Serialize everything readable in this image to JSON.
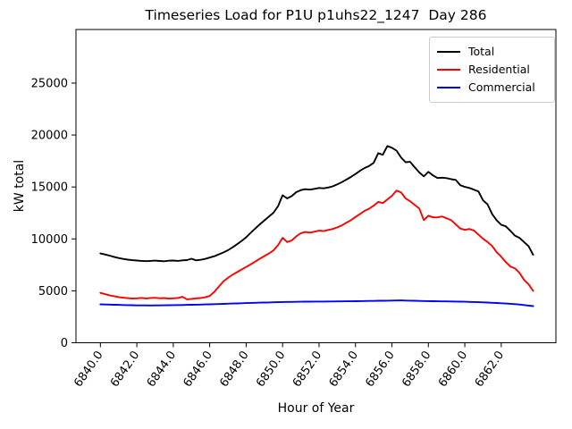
{
  "figure": {
    "title": "Timeseries Load for P1U p1uhs22_1247  Day 286",
    "xlabel": "Hour of Year",
    "ylabel": "kW total"
  },
  "chart_data": {
    "type": "line",
    "title": "Timeseries Load for P1U p1uhs22_1247  Day 286",
    "xlabel": "Hour of Year",
    "ylabel": "kW total",
    "grid": false,
    "legend_position": "upper right",
    "xlim": [
      6838.66,
      6865.0
    ],
    "ylim": [
      0,
      30160
    ],
    "xticks": [
      6840,
      6842,
      6844,
      6846,
      6848,
      6850,
      6852,
      6854,
      6856,
      6858,
      6860,
      6862
    ],
    "xtick_labels": [
      "6840.0",
      "6842.0",
      "6844.0",
      "6846.0",
      "6848.0",
      "6850.0",
      "6852.0",
      "6854.0",
      "6856.0",
      "6858.0",
      "6860.0",
      "6862.0"
    ],
    "yticks": [
      0,
      5000,
      10000,
      15000,
      20000,
      25000
    ],
    "ytick_labels": [
      "0",
      "5000",
      "10000",
      "15000",
      "20000",
      "25000"
    ],
    "x": [
      6840.0,
      6840.25,
      6840.5,
      6840.75,
      6841.0,
      6841.25,
      6841.5,
      6841.75,
      6842.0,
      6842.25,
      6842.5,
      6842.75,
      6843.0,
      6843.25,
      6843.5,
      6843.75,
      6844.0,
      6844.25,
      6844.5,
      6844.75,
      6845.0,
      6845.25,
      6845.5,
      6845.75,
      6846.0,
      6846.25,
      6846.5,
      6846.75,
      6847.0,
      6847.25,
      6847.5,
      6847.75,
      6848.0,
      6848.25,
      6848.5,
      6848.75,
      6849.0,
      6849.25,
      6849.5,
      6849.75,
      6850.0,
      6850.25,
      6850.5,
      6850.75,
      6851.0,
      6851.25,
      6851.5,
      6851.75,
      6852.0,
      6852.25,
      6852.5,
      6852.75,
      6853.0,
      6853.25,
      6853.5,
      6853.75,
      6854.0,
      6854.25,
      6854.5,
      6854.75,
      6855.0,
      6855.25,
      6855.5,
      6855.75,
      6856.0,
      6856.25,
      6856.5,
      6856.75,
      6857.0,
      6857.25,
      6857.5,
      6857.75,
      6858.0,
      6858.25,
      6858.5,
      6858.75,
      6859.0,
      6859.25,
      6859.5,
      6859.75,
      6860.0,
      6860.25,
      6860.5,
      6860.75,
      6861.0,
      6861.25,
      6861.5,
      6861.75,
      6862.0,
      6862.25,
      6862.5,
      6862.75,
      6863.0,
      6863.25,
      6863.5,
      6863.75
    ],
    "series": [
      {
        "name": "Total",
        "color": "#000000",
        "values": [
          8600,
          8500,
          8390,
          8270,
          8160,
          8070,
          8000,
          7950,
          7915,
          7880,
          7855,
          7880,
          7905,
          7870,
          7850,
          7895,
          7920,
          7885,
          7935,
          7960,
          8090,
          7930,
          7985,
          8070,
          8200,
          8330,
          8510,
          8690,
          8910,
          9180,
          9480,
          9800,
          10150,
          10580,
          11000,
          11400,
          11780,
          12150,
          12520,
          13150,
          14200,
          13900,
          14120,
          14500,
          14700,
          14780,
          14740,
          14820,
          14900,
          14870,
          14950,
          15060,
          15250,
          15460,
          15700,
          15960,
          16250,
          16560,
          16820,
          17020,
          17320,
          18250,
          18100,
          18940,
          18780,
          18500,
          17850,
          17380,
          17420,
          16900,
          16400,
          16020,
          16450,
          16120,
          15860,
          15890,
          15850,
          15750,
          15680,
          15170,
          15010,
          14900,
          14740,
          14560,
          13710,
          13330,
          12400,
          11800,
          11360,
          11210,
          10780,
          10320,
          10100,
          9700,
          9300,
          8480
        ]
      },
      {
        "name": "Residential",
        "color": "#ff0000",
        "values": [
          4800,
          4680,
          4570,
          4480,
          4400,
          4340,
          4290,
          4255,
          4280,
          4320,
          4270,
          4310,
          4330,
          4285,
          4305,
          4255,
          4280,
          4310,
          4420,
          4180,
          4225,
          4280,
          4305,
          4380,
          4500,
          4900,
          5400,
          5900,
          6250,
          6550,
          6800,
          7050,
          7300,
          7550,
          7810,
          8100,
          8350,
          8600,
          8900,
          9400,
          10100,
          9700,
          9850,
          10250,
          10550,
          10660,
          10600,
          10700,
          10800,
          10750,
          10860,
          10950,
          11110,
          11300,
          11560,
          11800,
          12110,
          12400,
          12700,
          12910,
          13200,
          13560,
          13450,
          13800,
          14150,
          14650,
          14480,
          13900,
          13620,
          13270,
          12930,
          11810,
          12240,
          12070,
          12070,
          12160,
          11980,
          11800,
          11400,
          11000,
          10870,
          10950,
          10800,
          10400,
          10010,
          9700,
          9320,
          8720,
          8290,
          7770,
          7340,
          7170,
          6740,
          6060,
          5630,
          5000
        ]
      },
      {
        "name": "Commercial",
        "color": "#0000ff",
        "values": [
          3700,
          3685,
          3670,
          3655,
          3645,
          3630,
          3620,
          3610,
          3600,
          3595,
          3595,
          3590,
          3595,
          3600,
          3605,
          3610,
          3620,
          3630,
          3635,
          3645,
          3655,
          3665,
          3675,
          3690,
          3700,
          3715,
          3730,
          3745,
          3760,
          3775,
          3790,
          3805,
          3820,
          3835,
          3845,
          3860,
          3870,
          3885,
          3895,
          3910,
          3920,
          3930,
          3935,
          3945,
          3950,
          3955,
          3960,
          3965,
          3970,
          3970,
          3975,
          3975,
          3980,
          3985,
          3990,
          3995,
          4000,
          4010,
          4015,
          4025,
          4030,
          4040,
          4045,
          4055,
          4060,
          4070,
          4080,
          4065,
          4050,
          4040,
          4030,
          4020,
          4010,
          4000,
          3995,
          3985,
          3980,
          3975,
          3970,
          3960,
          3950,
          3935,
          3925,
          3905,
          3890,
          3870,
          3850,
          3825,
          3800,
          3775,
          3750,
          3715,
          3680,
          3630,
          3580,
          3530
        ]
      }
    ]
  }
}
